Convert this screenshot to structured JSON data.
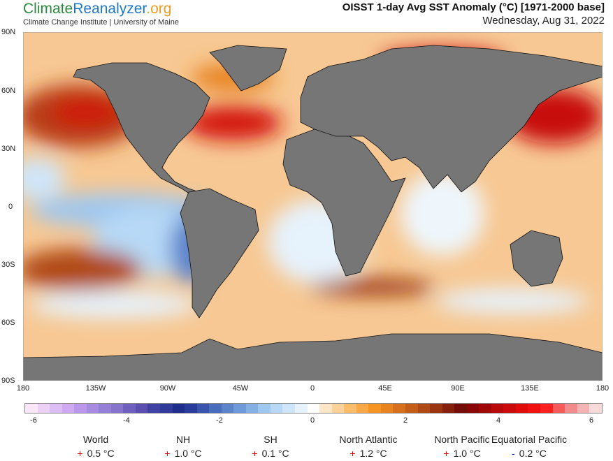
{
  "header": {
    "logo_part1": "Climate",
    "logo_part2": "Reanalyzer",
    "logo_part3": ".org",
    "subtitle": "Climate Change Institute | University of Maine",
    "title": "OISST 1-day Avg SST Anomaly (°C) [1971-2000 base]",
    "date": "Wednesday, Aug 31, 2022"
  },
  "map": {
    "lat_labels": [
      "90N",
      "60N",
      "30N",
      "0",
      "30S",
      "60S",
      "90S"
    ],
    "lon_labels": [
      "180",
      "135W",
      "90W",
      "45W",
      "0",
      "45E",
      "90E",
      "135E",
      "180"
    ],
    "land_color": "#767676"
  },
  "colorbar": {
    "ticks": [
      "-6",
      "-4",
      "-2",
      "0",
      "2",
      "4",
      "6"
    ],
    "colors": [
      "#fae6f8",
      "#ecd0f6",
      "#dcbdf4",
      "#cfaaf2",
      "#bb98ec",
      "#a98be2",
      "#9580d8",
      "#8573cc",
      "#6f5fbe",
      "#5a4fb0",
      "#3f42a4",
      "#2f3a9a",
      "#1e2c8c",
      "#293c9c",
      "#3a54ae",
      "#4a6cbd",
      "#5d83cb",
      "#6f99d8",
      "#86b0e4",
      "#9fc7f0",
      "#b7d9f6",
      "#cfe6fa",
      "#e6f2fc",
      "#ffffff",
      "#fde6c8",
      "#fdd19a",
      "#fbbc6c",
      "#f9a845",
      "#f59422",
      "#e88320",
      "#d6701c",
      "#c45d18",
      "#b04a14",
      "#9a3510",
      "#86200c",
      "#740c08",
      "#8a0606",
      "#a00606",
      "#b80808",
      "#cc0a0a",
      "#e00c0c",
      "#f01010",
      "#fc2020",
      "#f65a5a",
      "#f28c8c",
      "#f4b4b4",
      "#f8dada"
    ]
  },
  "stats": [
    {
      "label": "World",
      "sign": "+",
      "value": "0.5 °C",
      "sign_color": "#e00000"
    },
    {
      "label": "NH",
      "sign": "+",
      "value": "1.0 °C",
      "sign_color": "#e00000"
    },
    {
      "label": "SH",
      "sign": "+",
      "value": "0.1 °C",
      "sign_color": "#e00000"
    },
    {
      "label": "North Atlantic",
      "sign": "+",
      "value": "1.2 °C",
      "sign_color": "#e00000"
    },
    {
      "label": "North Pacific",
      "sign": "+",
      "value": "1.0 °C",
      "sign_color": "#e00000"
    },
    {
      "label": "Equatorial Pacific",
      "sign": "-",
      "value": "0.2 °C",
      "sign_color": "#0000cc"
    }
  ]
}
